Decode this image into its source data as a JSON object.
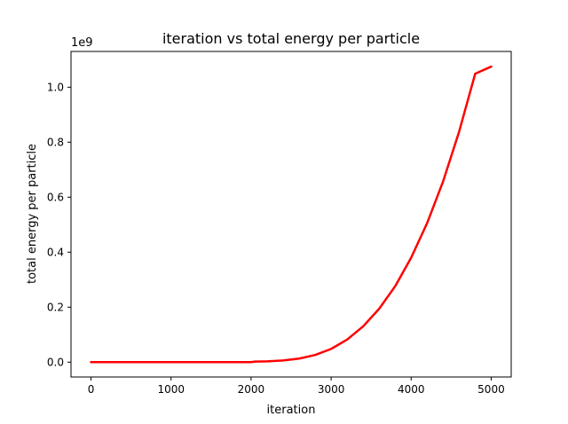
{
  "chart_data": {
    "type": "line",
    "title": "iteration vs total energy per particle",
    "xlabel": "iteration",
    "ylabel": "total energy per particle",
    "offset_label": "1e9",
    "xlim": [
      -250,
      5250
    ],
    "ylim": [
      -0.054,
      1.13
    ],
    "xticks": [
      0,
      1000,
      2000,
      3000,
      4000,
      5000
    ],
    "xtick_labels": [
      "0",
      "1000",
      "2000",
      "3000",
      "4000",
      "5000"
    ],
    "yticks": [
      0.0,
      0.2,
      0.4,
      0.6,
      0.8,
      1.0
    ],
    "ytick_labels": [
      "0.0",
      "0.2",
      "0.4",
      "0.6",
      "0.8",
      "1.0"
    ],
    "grid": false,
    "series": [
      {
        "color": "#ff0000",
        "x": [
          0,
          500,
          1000,
          1500,
          2000,
          2050,
          2200,
          2400,
          2600,
          2800,
          3000,
          3200,
          3400,
          3600,
          3800,
          4000,
          4200,
          4400,
          4600,
          4800,
          5000
        ],
        "y": [
          0.0,
          0.0,
          0.0,
          0.0,
          0.0,
          0.002,
          0.003,
          0.006,
          0.013,
          0.026,
          0.048,
          0.082,
          0.13,
          0.194,
          0.276,
          0.38,
          0.506,
          0.658,
          0.839,
          1.049,
          1.075
        ]
      }
    ]
  }
}
